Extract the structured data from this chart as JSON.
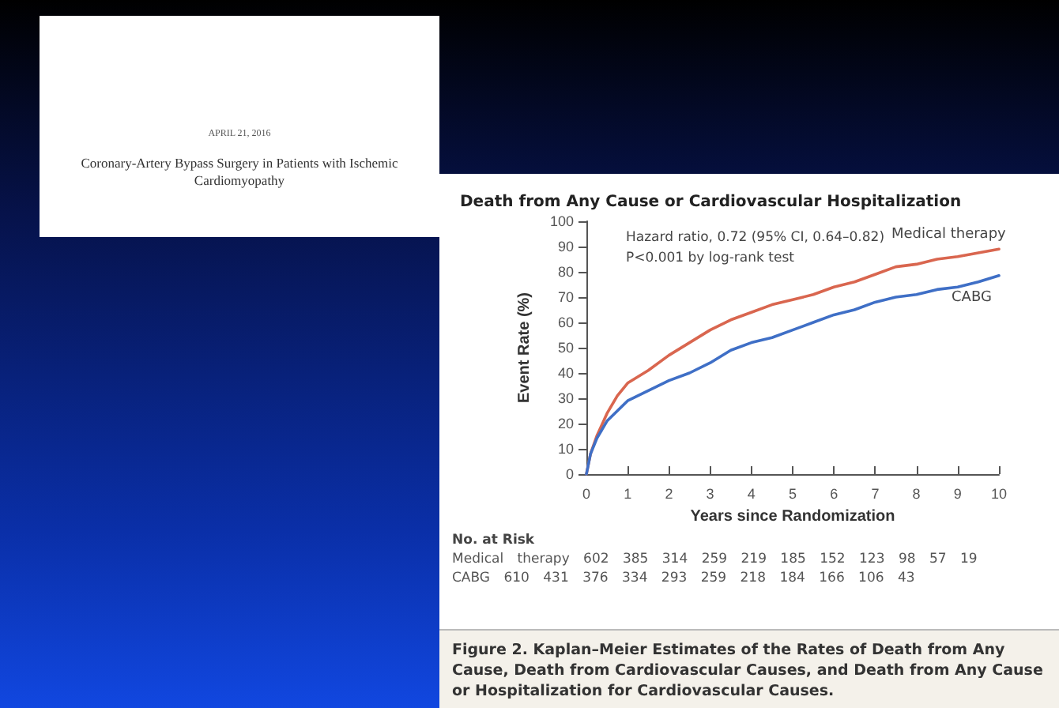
{
  "chart_data": {
    "type": "line",
    "title": "Death from Any Cause or Cardiovascular Hospitalization",
    "xlabel": "Years since Randomization",
    "ylabel": "Event Rate (%)",
    "x": [
      0,
      0.1,
      0.25,
      0.5,
      0.75,
      1,
      1.5,
      2,
      2.5,
      3,
      3.5,
      4,
      4.5,
      5,
      5.5,
      6,
      6.5,
      7,
      7.5,
      8,
      8.5,
      9,
      9.5,
      10
    ],
    "series": [
      {
        "name": "Medical therapy",
        "color": "#d9664f",
        "values": [
          0,
          8,
          15,
          24,
          31,
          36,
          41,
          47,
          52,
          57,
          61,
          64,
          67,
          69,
          71,
          74,
          76,
          79,
          82,
          83,
          85,
          86,
          87.5,
          89
        ]
      },
      {
        "name": "CABG",
        "color": "#3f6fc6",
        "values": [
          0,
          8,
          14,
          21,
          25,
          29,
          33,
          37,
          40,
          44,
          49,
          52,
          54,
          57,
          60,
          63,
          65,
          68,
          70,
          71,
          73,
          74,
          76,
          78.5
        ]
      }
    ],
    "xlim": [
      0,
      10
    ],
    "xticks": [
      0,
      1,
      2,
      3,
      4,
      5,
      6,
      7,
      8,
      9,
      10
    ],
    "ylim": [
      0,
      100
    ],
    "yticks": [
      0,
      10,
      20,
      30,
      40,
      50,
      60,
      70,
      80,
      90,
      100
    ],
    "grid": false,
    "legend": false,
    "marker": "none",
    "line_style": "solid",
    "annotations": [
      "APRIL 21, 2016",
      "Coronary-Artery Bypass Surgery in Patients with Ischemic Cardiomyopathy",
      "Hazard ratio, 0.72 (95% CI, 0.64–0.82)",
      "P<0.001 by log-rank test",
      "No. at Risk",
      "Medical therapy 602 385 314 259 219 185 152 123 98 57 19",
      "CABG 610 431 376 334 293 259 218 184 166 106 43",
      "Figure 2. Kaplan–Meier Estimates of the Rates of Death from Any Cause, Death from Cardiovascular Causes, and Death from Any Cause or Hospitalization for Cardiovascular Causes."
    ]
  }
}
